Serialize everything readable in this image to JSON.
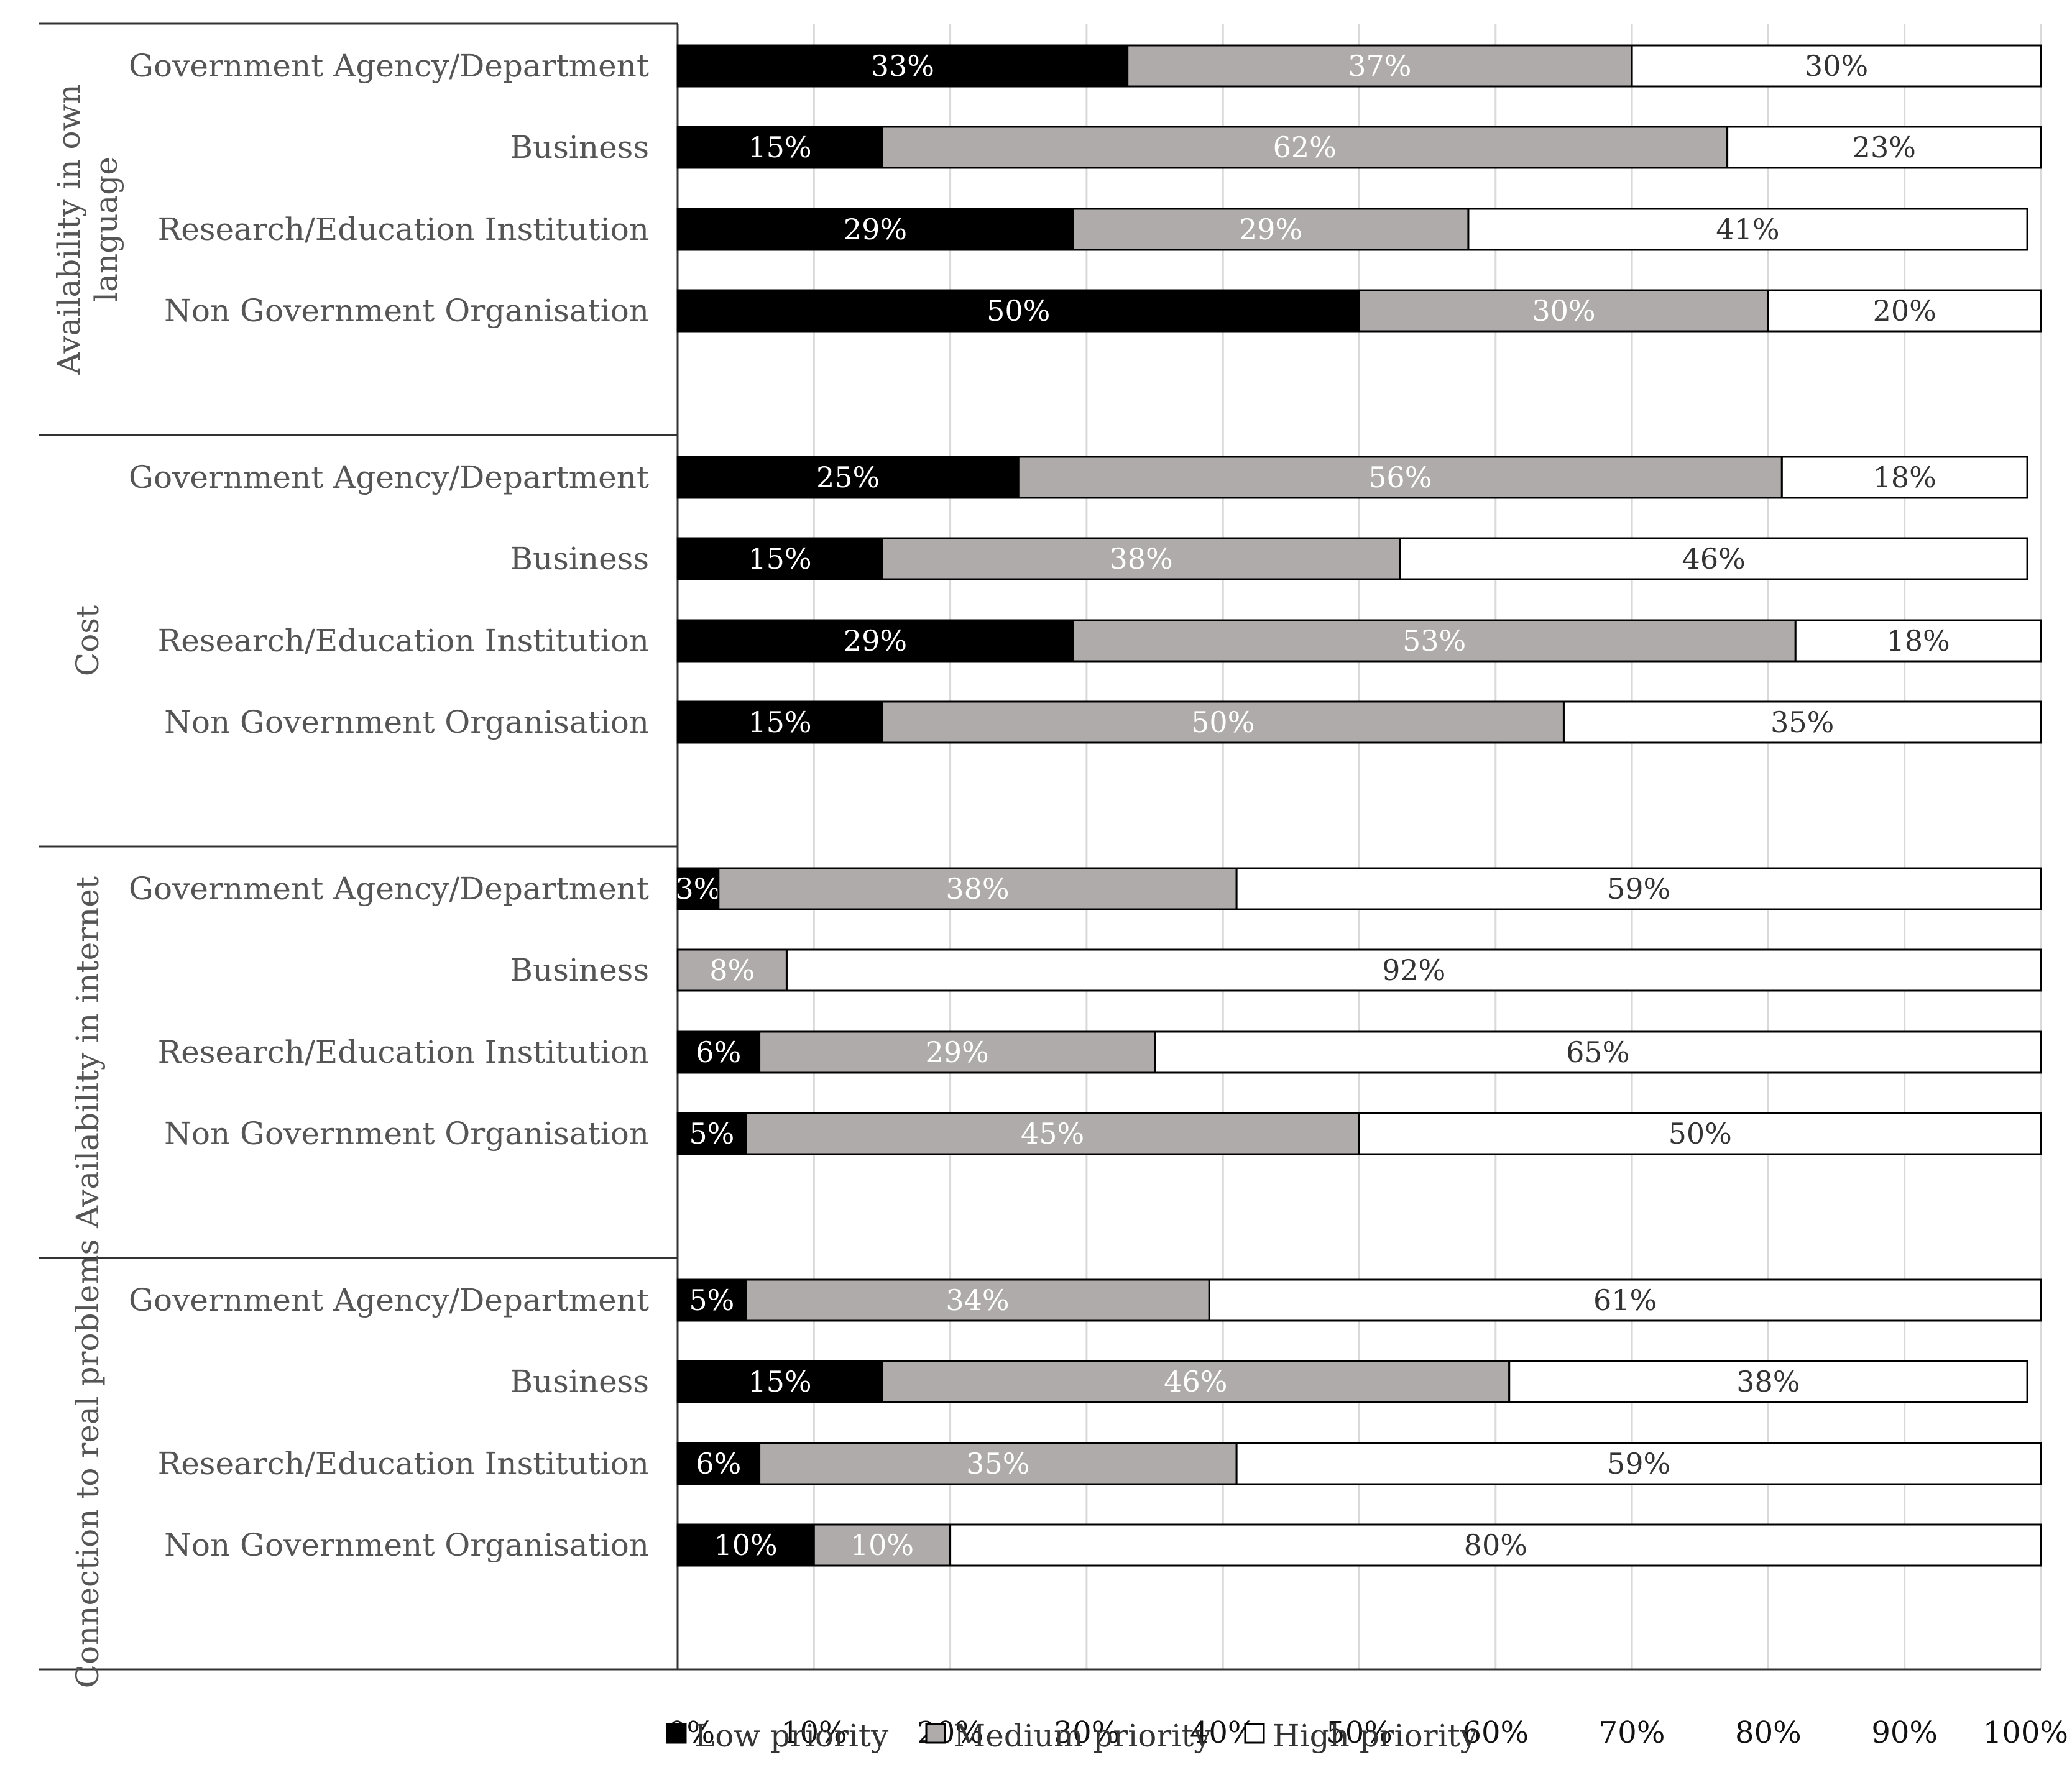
{
  "chart_data": {
    "type": "bar",
    "orientation": "horizontal",
    "stacked": true,
    "percent_stacked": true,
    "title": "",
    "xlabel": "",
    "ylabel": "",
    "xlim": [
      0,
      100
    ],
    "x_ticks": [
      "0%",
      "10%",
      "20%",
      "30%",
      "40%",
      "50%",
      "60%",
      "70%",
      "80%",
      "90%",
      "100%"
    ],
    "grid": true,
    "legend_position": "bottom",
    "colors": {
      "low": "#000000",
      "medium": "#afabab",
      "high": "#ffffff",
      "grid": "#d9d9d9",
      "label_dark": "#ffffff",
      "label_light": "#333333"
    },
    "series_names": [
      "Low priority",
      "Medium priority",
      "High priority"
    ],
    "groups": [
      {
        "name": "Availability in own language",
        "label_lines": [
          "Availability in own",
          "language"
        ],
        "bars": [
          {
            "category": "Government Agency/Department",
            "values": [
              33,
              37,
              30
            ],
            "labels": [
              "33%",
              "37%",
              "30%"
            ]
          },
          {
            "category": "Business",
            "values": [
              15,
              62,
              23
            ],
            "labels": [
              "15%",
              "62%",
              "23%"
            ]
          },
          {
            "category": "Research/Education Institution",
            "values": [
              29,
              29,
              41
            ],
            "labels": [
              "29%",
              "29%",
              "41%"
            ]
          },
          {
            "category": "Non Government Organisation",
            "values": [
              50,
              30,
              20
            ],
            "labels": [
              "50%",
              "30%",
              "20%"
            ]
          }
        ]
      },
      {
        "name": "Cost",
        "label_lines": [
          "Cost"
        ],
        "bars": [
          {
            "category": "Government Agency/Department",
            "values": [
              25,
              56,
              18
            ],
            "labels": [
              "25%",
              "56%",
              "18%"
            ]
          },
          {
            "category": "Business",
            "values": [
              15,
              38,
              46
            ],
            "labels": [
              "15%",
              "38%",
              "46%"
            ]
          },
          {
            "category": "Research/Education Institution",
            "values": [
              29,
              53,
              18
            ],
            "labels": [
              "29%",
              "53%",
              "18%"
            ]
          },
          {
            "category": "Non Government Organisation",
            "values": [
              15,
              50,
              35
            ],
            "labels": [
              "15%",
              "50%",
              "35%"
            ]
          }
        ]
      },
      {
        "name": "Availability in internet",
        "label_lines": [
          "Availability in internet"
        ],
        "bars": [
          {
            "category": "Government Agency/Department",
            "values": [
              3,
              38,
              59
            ],
            "labels": [
              "3%",
              "38%",
              "59%"
            ]
          },
          {
            "category": "Business",
            "values": [
              0,
              8,
              92
            ],
            "labels": [
              "",
              "8%",
              "92%"
            ]
          },
          {
            "category": "Research/Education Institution",
            "values": [
              6,
              29,
              65
            ],
            "labels": [
              "6%",
              "29%",
              "65%"
            ]
          },
          {
            "category": "Non Government Organisation",
            "values": [
              5,
              45,
              50
            ],
            "labels": [
              "5%",
              "45%",
              "50%"
            ]
          }
        ]
      },
      {
        "name": "Connection to real problems",
        "label_lines": [
          "Connection to real problems"
        ],
        "bars": [
          {
            "category": "Government Agency/Department",
            "values": [
              5,
              34,
              61
            ],
            "labels": [
              "5%",
              "34%",
              "61%"
            ]
          },
          {
            "category": "Business",
            "values": [
              15,
              46,
              38
            ],
            "labels": [
              "15%",
              "46%",
              "38%"
            ]
          },
          {
            "category": "Research/Education Institution",
            "values": [
              6,
              35,
              59
            ],
            "labels": [
              "6%",
              "35%",
              "59%"
            ]
          },
          {
            "category": "Non Government Organisation",
            "values": [
              10,
              10,
              80
            ],
            "labels": [
              "10%",
              "10%",
              "80%"
            ]
          }
        ]
      }
    ]
  }
}
